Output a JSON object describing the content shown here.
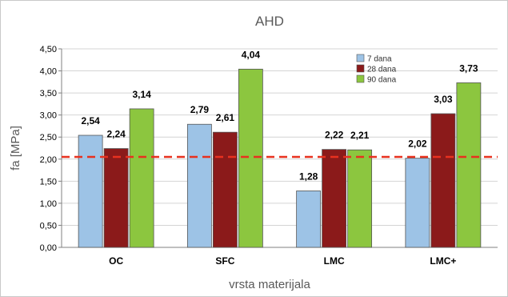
{
  "chart_data": {
    "type": "bar",
    "title": "AHD",
    "xlabel": "vrsta materijala",
    "ylabel": "fa [MPa]",
    "categories": [
      "OC",
      "SFC",
      "LMC",
      "LMC+"
    ],
    "series": [
      {
        "name": "7 dana",
        "color": "#9dc3e6",
        "values": [
          2.54,
          2.79,
          1.28,
          2.02
        ],
        "labels": [
          "2,54",
          "2,79",
          "1,28",
          "2,02"
        ]
      },
      {
        "name": "28 dana",
        "color": "#8b1a1a",
        "values": [
          2.24,
          2.61,
          2.22,
          3.03
        ],
        "labels": [
          "2,24",
          "2,61",
          "2,22",
          "3,03"
        ]
      },
      {
        "name": "90 dana",
        "color": "#8cc63f",
        "values": [
          3.14,
          4.04,
          2.21,
          3.73
        ],
        "labels": [
          "3,14",
          "4,04",
          "2,21",
          "3,73"
        ]
      }
    ],
    "ylim": [
      0,
      4.5
    ],
    "yticks": [
      "0,00",
      "0,50",
      "1,00",
      "1,50",
      "2,00",
      "2,50",
      "3,00",
      "3,50",
      "4,00",
      "4,50"
    ],
    "reference_line": {
      "value": 2.05,
      "color": "#e8311f",
      "style": "dashed"
    },
    "grid": true,
    "legend_position": "top-right"
  }
}
